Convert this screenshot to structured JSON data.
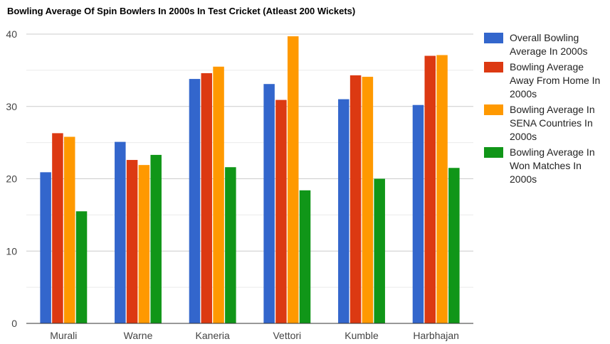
{
  "chart_data": {
    "type": "bar",
    "title": "Bowling Average Of Spin Bowlers In 2000s In Test Cricket (Atleast 200 Wickets)",
    "categories": [
      "Murali",
      "Warne",
      "Kaneria",
      "Vettori",
      "Kumble",
      "Harbhajan"
    ],
    "series": [
      {
        "name": "Overall Bowling Average In 2000s",
        "color": "#3366cc",
        "values": [
          20.9,
          25.1,
          33.8,
          33.1,
          31.0,
          30.2
        ]
      },
      {
        "name": "Bowling Average Away From Home In 2000s",
        "color": "#dc3912",
        "values": [
          26.3,
          22.6,
          34.6,
          30.9,
          34.3,
          37.0
        ]
      },
      {
        "name": "Bowling Average In SENA Countries In 2000s",
        "color": "#ff9900",
        "values": [
          25.8,
          21.9,
          35.5,
          39.7,
          34.1,
          37.1
        ]
      },
      {
        "name": "Bowling Average In Won Matches In 2000s",
        "color": "#109618",
        "values": [
          15.5,
          23.3,
          21.6,
          18.4,
          20.0,
          21.5
        ]
      }
    ],
    "xlabel": "",
    "ylabel": "",
    "ylim": [
      0,
      40
    ],
    "yticks": [
      0,
      10,
      20,
      30,
      40
    ],
    "grid": true,
    "legend_position": "right"
  }
}
